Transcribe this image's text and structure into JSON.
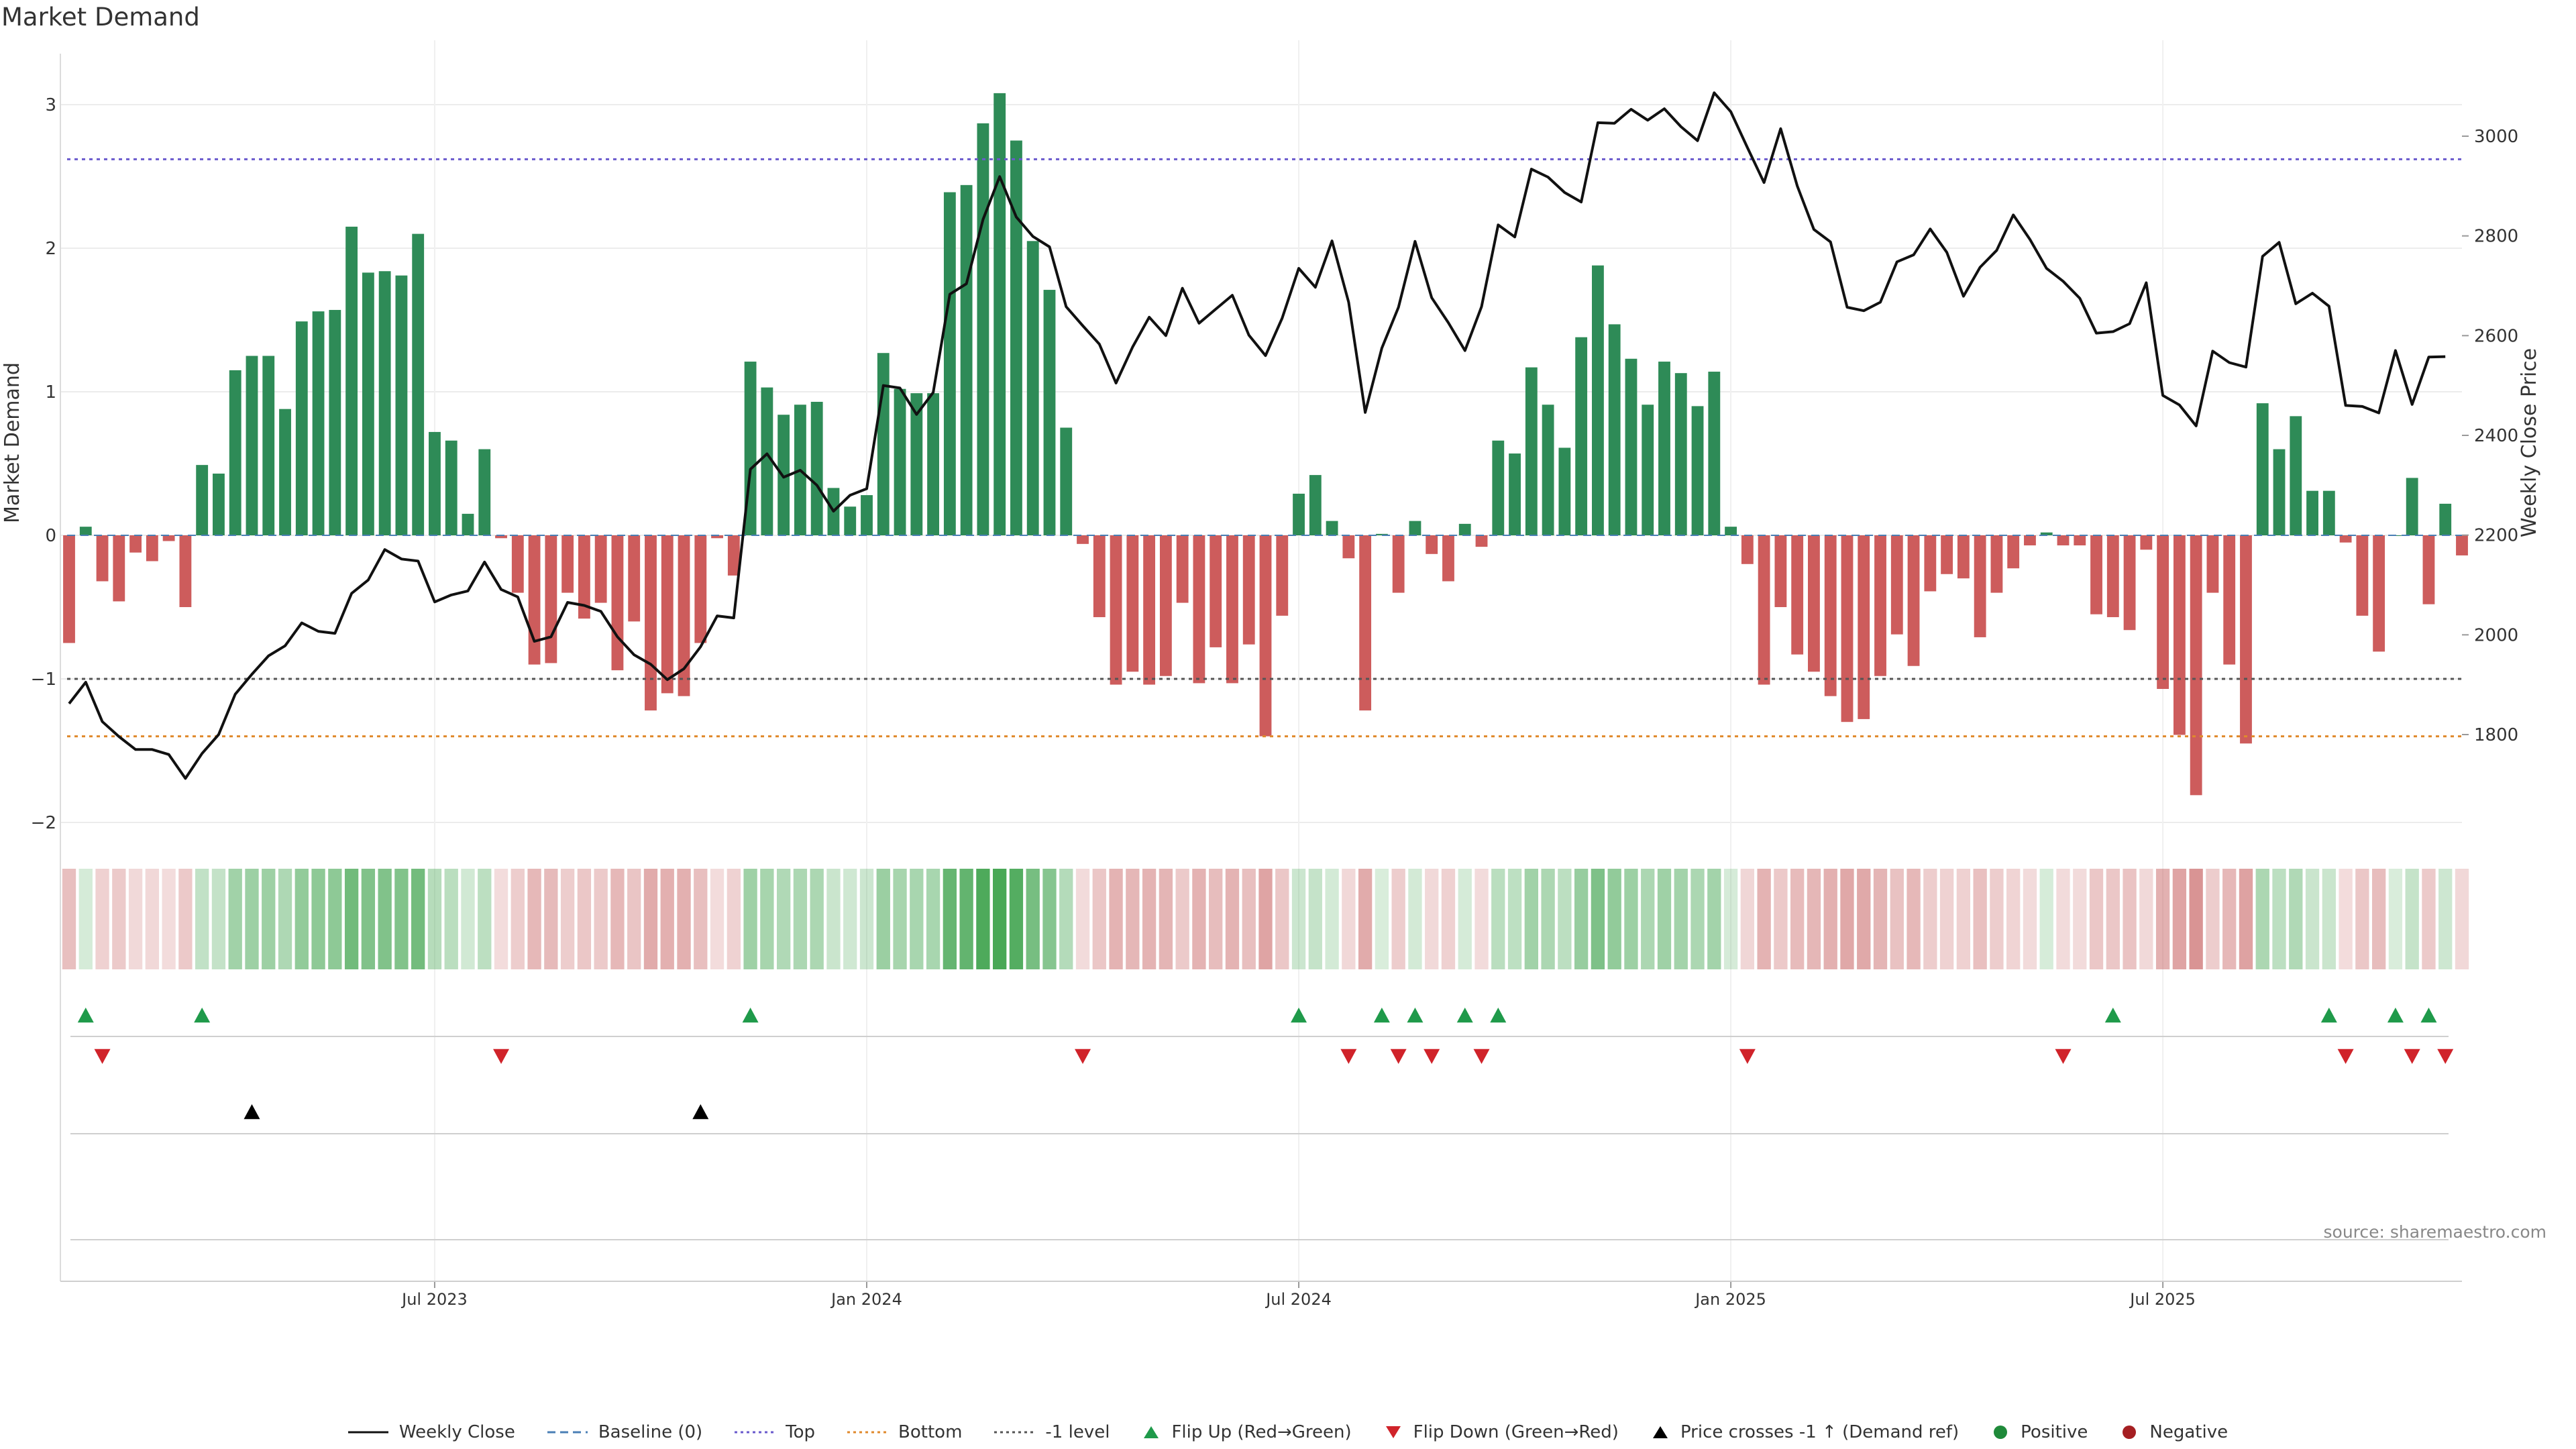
{
  "title": "Market Demand",
  "source": "source: sharemaestro.com",
  "colors": {
    "positive": "#2e8b57",
    "negative": "#cd5c5c",
    "line": "#111111",
    "top": "#6a5acd",
    "bottom": "#e08a2c",
    "level": "#555555",
    "up": "#1f9a4a",
    "down": "#d0232a",
    "cross": "#000000"
  },
  "chart_data": {
    "type": "bar+line",
    "title": "Market Demand",
    "ylabel": "Market Demand",
    "y2label": "Weekly Close Price",
    "ylim": [
      -2.3,
      3.3
    ],
    "y2lim": [
      1582,
      3165
    ],
    "yticks": [
      3,
      2,
      1,
      0,
      -1,
      -2
    ],
    "yticklabels": [
      "3",
      "2",
      "1",
      "0",
      "−1",
      "−2"
    ],
    "y2ticks": [
      3000,
      2800,
      2600,
      2400,
      2200,
      2000,
      1800
    ],
    "xticks": [
      22,
      48,
      74,
      100,
      126
    ],
    "xticklabels": [
      "Jul 2023",
      "Jan 2024",
      "Jul 2024",
      "Jan 2025",
      "Jul 2025"
    ],
    "reference_lines": {
      "top": 2.62,
      "bottom": -1.4,
      "minus_one": -1.0,
      "baseline": 0
    },
    "demand": [
      -0.75,
      0.06,
      -0.32,
      -0.46,
      -0.12,
      -0.18,
      -0.04,
      -0.5,
      0.49,
      0.43,
      1.15,
      1.25,
      1.25,
      0.88,
      1.49,
      1.56,
      1.57,
      2.15,
      1.83,
      1.84,
      1.81,
      2.1,
      0.72,
      0.66,
      0.15,
      0.6,
      -0.02,
      -0.4,
      -0.9,
      -0.89,
      -0.4,
      -0.58,
      -0.47,
      -0.94,
      -0.6,
      -1.22,
      -1.1,
      -1.12,
      -0.75,
      -0.02,
      -0.28,
      1.21,
      1.03,
      0.84,
      0.91,
      0.93,
      0.33,
      0.2,
      0.28,
      1.27,
      1.02,
      0.99,
      0.99,
      2.39,
      2.44,
      2.87,
      3.08,
      2.75,
      2.05,
      1.71,
      0.75,
      -0.06,
      -0.57,
      -1.04,
      -0.95,
      -1.04,
      -0.98,
      -0.47,
      -1.03,
      -0.78,
      -1.03,
      -0.76,
      -1.4,
      -0.56,
      0.29,
      0.42,
      0.1,
      -0.16,
      -1.22,
      0.01,
      -0.4,
      0.1,
      -0.13,
      -0.32,
      0.08,
      -0.08,
      0.66,
      0.57,
      1.17,
      0.91,
      0.61,
      1.38,
      1.88,
      1.47,
      1.23,
      0.91,
      1.21,
      1.13,
      0.9,
      1.14,
      0.06,
      -0.2,
      -1.04,
      -0.5,
      -0.83,
      -0.95,
      -1.12,
      -1.3,
      -1.28,
      -0.98,
      -0.69,
      -0.91,
      -0.39,
      -0.27,
      -0.3,
      -0.71,
      -0.4,
      -0.23,
      -0.07,
      0.02,
      -0.07,
      -0.07,
      -0.55,
      -0.57,
      -0.66,
      -0.1,
      -1.07,
      -1.39,
      -1.81,
      -0.4,
      -0.9,
      -1.45,
      0.92,
      0.6,
      0.83,
      0.31,
      0.31,
      -0.05,
      -0.56,
      -0.81,
      0.0,
      0.4,
      -0.48,
      0.22,
      -0.14
    ],
    "weekly_close": [
      1862,
      1905,
      1826,
      1796,
      1770,
      1770,
      1760,
      1712,
      1762,
      1800,
      1881,
      1921,
      1958,
      1978,
      2024,
      2007,
      2003,
      2083,
      2110,
      2171,
      2152,
      2148,
      2066,
      2080,
      2088,
      2146,
      2091,
      2076,
      1987,
      1996,
      2065,
      2059,
      2047,
      1996,
      1960,
      1941,
      1910,
      1932,
      1976,
      2038,
      2034,
      2332,
      2363,
      2316,
      2330,
      2300,
      2248,
      2280,
      2293,
      2500,
      2495,
      2442,
      2486,
      2683,
      2704,
      2833,
      2919,
      2838,
      2799,
      2778,
      2658,
      2620,
      2583,
      2505,
      2577,
      2637,
      2600,
      2695,
      2625,
      2653,
      2681,
      2601,
      2560,
      2635,
      2735,
      2697,
      2790,
      2667,
      2446,
      2575,
      2657,
      2789,
      2676,
      2626,
      2570,
      2658,
      2822,
      2798,
      2934,
      2918,
      2887,
      2868,
      3027,
      3026,
      3054,
      3032,
      3055,
      3019,
      2991,
      3087,
      3049,
      2977,
      2907,
      3015,
      2900,
      2813,
      2788,
      2657,
      2650,
      2667,
      2748,
      2762,
      2814,
      2767,
      2679,
      2737,
      2771,
      2842,
      2793,
      2735,
      2709,
      2675,
      2605,
      2608,
      2624,
      2706,
      2480,
      2461,
      2419,
      2569,
      2546,
      2537,
      2759,
      2787,
      2664,
      2685,
      2659,
      2460,
      2458,
      2445,
      2570,
      2462,
      2557,
      2558
    ],
    "flip_up": [
      1,
      8,
      41,
      74,
      79,
      81,
      84,
      86,
      123,
      136,
      140,
      142
    ],
    "flip_down": [
      2,
      26,
      61,
      77,
      80,
      82,
      85,
      101,
      120,
      137,
      141,
      143
    ],
    "price_cross": [
      11,
      38
    ]
  },
  "legend": [
    {
      "label": "Weekly Close",
      "icon": "solid-line"
    },
    {
      "label": "Baseline (0)",
      "icon": "dashed-line"
    },
    {
      "label": "Top",
      "icon": "dotted-line-purple"
    },
    {
      "label": "Bottom",
      "icon": "dotted-line-orange"
    },
    {
      "label": "-1 level",
      "icon": "dotted-line-grey"
    },
    {
      "label": "Flip Up (Red→Green)",
      "icon": "triangle-up-green"
    },
    {
      "label": "Flip Down (Green→Red)",
      "icon": "triangle-down-red"
    },
    {
      "label": "Price crosses -1 ↑ (Demand ref)",
      "icon": "triangle-up-black"
    },
    {
      "label": "Positive",
      "icon": "circle-green"
    },
    {
      "label": "Negative",
      "icon": "circle-red"
    }
  ]
}
